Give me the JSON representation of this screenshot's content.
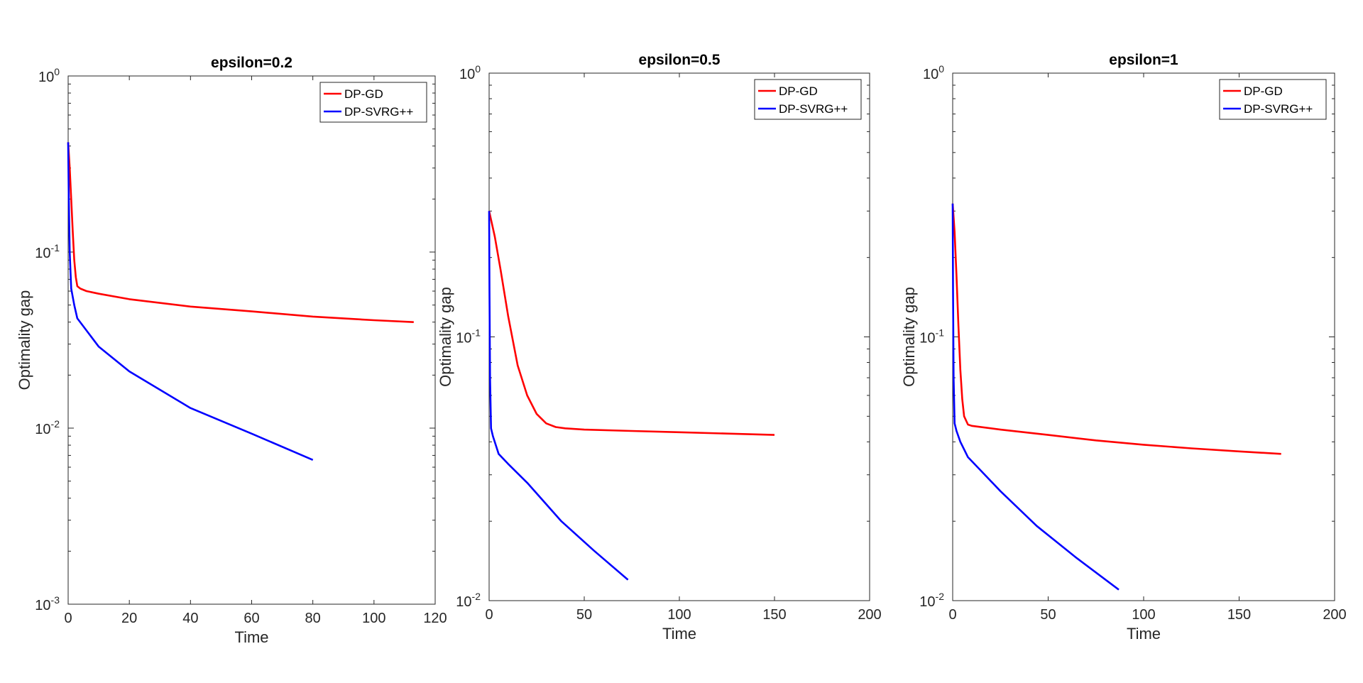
{
  "chart_data": [
    {
      "type": "line",
      "title": "epsilon=0.2",
      "xlabel": "Time",
      "ylabel": "Optimality gap",
      "yscale": "log",
      "xlim": [
        0,
        120
      ],
      "ylim": [
        0.001,
        1
      ],
      "xticks": [
        0,
        20,
        40,
        60,
        80,
        100,
        120
      ],
      "xtick_labels": [
        "0",
        "20",
        "40",
        "60",
        "80",
        "100",
        "120"
      ],
      "yticks": [
        {
          "value": 0.001,
          "base": "10",
          "exp": "-3"
        },
        {
          "value": 0.01,
          "base": "10",
          "exp": "-2"
        },
        {
          "value": 0.1,
          "base": "10",
          "exp": "-1"
        },
        {
          "value": 1,
          "base": "10",
          "exp": "0"
        }
      ],
      "legend_position": "top-right",
      "series": [
        {
          "name": "DP-GD",
          "color": "#ff0000",
          "x": [
            0,
            0.5,
            1,
            1.5,
            2,
            2.5,
            3,
            4,
            6,
            10,
            20,
            40,
            60,
            80,
            100,
            113
          ],
          "y": [
            0.42,
            0.3,
            0.2,
            0.13,
            0.09,
            0.072,
            0.064,
            0.062,
            0.06,
            0.058,
            0.054,
            0.049,
            0.046,
            0.043,
            0.041,
            0.04
          ]
        },
        {
          "name": "DP-SVRG++",
          "color": "#0000ff",
          "x": [
            0,
            0.2,
            0.5,
            1,
            2,
            3,
            10,
            20,
            40,
            60,
            80
          ],
          "y": [
            0.42,
            0.2,
            0.1,
            0.062,
            0.05,
            0.042,
            0.029,
            0.021,
            0.013,
            0.0093,
            0.0066
          ]
        }
      ]
    },
    {
      "type": "line",
      "title": "epsilon=0.5",
      "xlabel": "Time",
      "ylabel": "Optimality gap",
      "yscale": "log",
      "xlim": [
        0,
        200
      ],
      "ylim": [
        0.01,
        1
      ],
      "xticks": [
        0,
        50,
        100,
        150,
        200
      ],
      "xtick_labels": [
        "0",
        "50",
        "100",
        "150",
        "200"
      ],
      "yticks": [
        {
          "value": 0.01,
          "base": "10",
          "exp": "-2"
        },
        {
          "value": 0.1,
          "base": "10",
          "exp": "-1"
        },
        {
          "value": 1,
          "base": "10",
          "exp": "0"
        }
      ],
      "legend_position": "top-right",
      "series": [
        {
          "name": "DP-GD",
          "color": "#ff0000",
          "x": [
            0,
            3,
            6,
            10,
            15,
            20,
            25,
            30,
            35,
            40,
            50,
            75,
            100,
            125,
            150
          ],
          "y": [
            0.3,
            0.24,
            0.18,
            0.12,
            0.078,
            0.06,
            0.051,
            0.047,
            0.0455,
            0.045,
            0.0445,
            0.044,
            0.0435,
            0.043,
            0.0425
          ]
        },
        {
          "name": "DP-SVRG++",
          "color": "#0000ff",
          "x": [
            0,
            0.2,
            0.5,
            1,
            2,
            5,
            10,
            20,
            38,
            55,
            73
          ],
          "y": [
            0.3,
            0.15,
            0.07,
            0.045,
            0.042,
            0.036,
            0.033,
            0.028,
            0.02,
            0.0155,
            0.012
          ]
        }
      ]
    },
    {
      "type": "line",
      "title": "epsilon=1",
      "xlabel": "Time",
      "ylabel": "Optimality gap",
      "yscale": "log",
      "xlim": [
        0,
        200
      ],
      "ylim": [
        0.01,
        1
      ],
      "xticks": [
        0,
        50,
        100,
        150,
        200
      ],
      "xtick_labels": [
        "0",
        "50",
        "100",
        "150",
        "200"
      ],
      "yticks": [
        {
          "value": 0.01,
          "base": "10",
          "exp": "-2"
        },
        {
          "value": 0.1,
          "base": "10",
          "exp": "-1"
        },
        {
          "value": 1,
          "base": "10",
          "exp": "0"
        }
      ],
      "legend_position": "top-right",
      "series": [
        {
          "name": "DP-GD",
          "color": "#ff0000",
          "x": [
            0,
            1,
            2,
            3,
            4,
            5,
            6,
            8,
            10,
            25,
            50,
            75,
            100,
            125,
            150,
            172
          ],
          "y": [
            0.32,
            0.25,
            0.17,
            0.11,
            0.075,
            0.058,
            0.05,
            0.0465,
            0.046,
            0.0445,
            0.0425,
            0.0405,
            0.039,
            0.0378,
            0.0368,
            0.036
          ]
        },
        {
          "name": "DP-SVRG++",
          "color": "#0000ff",
          "x": [
            0,
            0.2,
            0.5,
            1,
            2,
            4,
            8,
            15,
            25,
            44,
            65,
            87
          ],
          "y": [
            0.32,
            0.15,
            0.07,
            0.047,
            0.044,
            0.04,
            0.035,
            0.031,
            0.026,
            0.0192,
            0.0145,
            0.011
          ]
        }
      ]
    }
  ]
}
